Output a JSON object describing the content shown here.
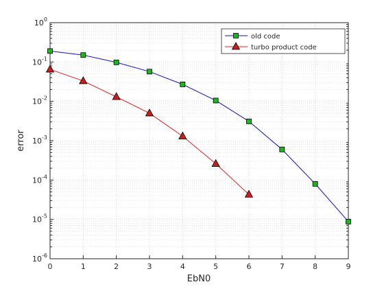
{
  "chart_data": {
    "type": "line",
    "x_label": "EbN0",
    "y_label": "error",
    "x": [
      0,
      1,
      2,
      3,
      4,
      5,
      6,
      7,
      8,
      9
    ],
    "series": [
      {
        "name": "old code",
        "color": "#1010c0",
        "marker": "square",
        "marker_color": "#1fb51f",
        "values": [
          0.19,
          0.15,
          0.098,
          0.057,
          0.027,
          0.0105,
          0.0031,
          0.0006,
          8e-05,
          8.8e-06
        ]
      },
      {
        "name": "turbo product code",
        "color": "#e02020",
        "marker": "triangle",
        "marker_color": "#c81e1e",
        "values": [
          0.065,
          0.033,
          0.013,
          0.005,
          0.0013,
          0.00026,
          4.3e-05,
          null,
          null,
          null
        ]
      }
    ],
    "xlim": [
      0,
      9
    ],
    "xticks": [
      0,
      1,
      2,
      3,
      4,
      5,
      6,
      7,
      8,
      9
    ],
    "ylim": [
      1e-06,
      1
    ],
    "ylog": true,
    "yticks": [
      {
        "value": 1e-06,
        "label": "10^-6"
      },
      {
        "value": 1e-05,
        "label": "10^-5"
      },
      {
        "value": 0.0001,
        "label": "10^-4"
      },
      {
        "value": 0.001,
        "label": "10^-3"
      },
      {
        "value": 0.01,
        "label": "10^-2"
      },
      {
        "value": 0.1,
        "label": "10^-1"
      },
      {
        "value": 1,
        "label": "10^0"
      }
    ],
    "grid": true,
    "minor_grid": true,
    "legend": "northeast"
  }
}
